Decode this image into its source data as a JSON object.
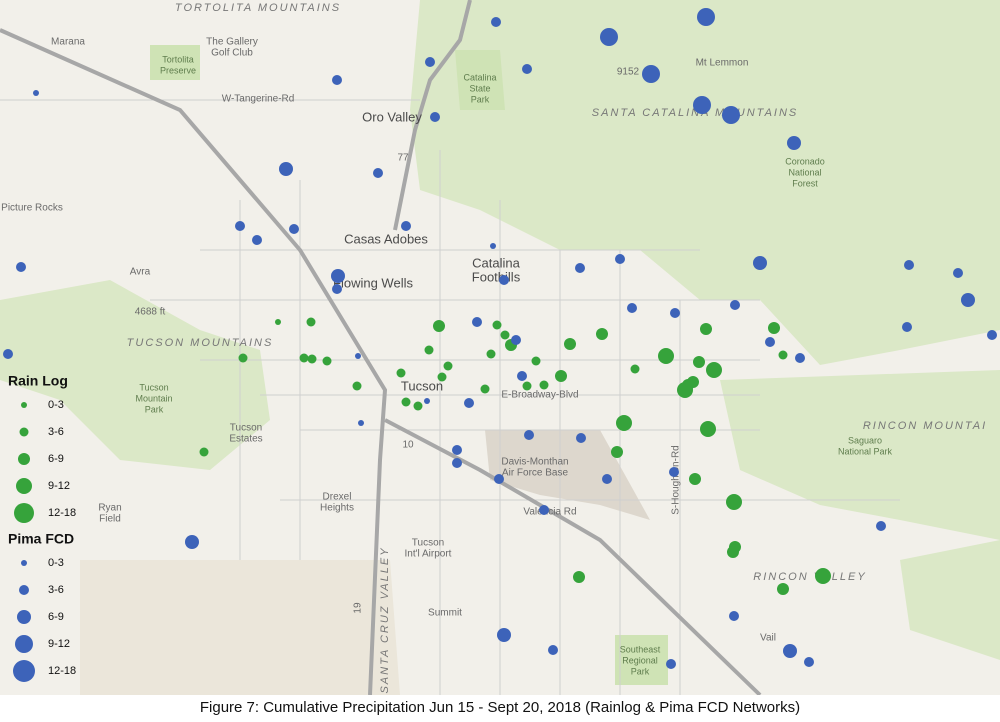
{
  "map": {
    "caption": "Figure 7: Cumulative Precipitation Jun 15 - Sept 20, 2018 (Rainlog & Pima FCD Networks)",
    "legend": [
      {
        "title": "Rain Log",
        "classes": [
          "0-3",
          "3-6",
          "6-9",
          "9-12",
          "12-18"
        ]
      },
      {
        "title": "Pima FCD",
        "classes": [
          "0-3",
          "3-6",
          "6-9",
          "9-12",
          "12-18"
        ]
      }
    ],
    "places": [
      [
        "TORTOLITA MOUNTAINS"
      ],
      [
        "Marana"
      ],
      [
        "The Gallery",
        "Golf Club"
      ],
      [
        "Tortolita",
        "Preserve"
      ],
      [
        "W-Tangerine-Rd"
      ],
      [
        "Oro Valley"
      ],
      [
        "Catalina",
        "State",
        "Park"
      ],
      [
        "9152"
      ],
      [
        "Mt Lemmon"
      ],
      [
        "SANTA CATALINA MOUNTAINS"
      ],
      [
        "Coronado",
        "National",
        "Forest"
      ],
      [
        "Picture Rocks"
      ],
      [
        "Casas Adobes"
      ],
      [
        "Catalina",
        "Foothills"
      ],
      [
        "Flowing Wells"
      ],
      [
        "Avra"
      ],
      [
        "4688 ft"
      ],
      [
        "TUCSON MOUNTAINS"
      ],
      [
        "Tucson"
      ],
      [
        "E-Broadway-Blvd"
      ],
      [
        "Tucson",
        "Mountain",
        "Park"
      ],
      [
        "Tucson",
        "Estates"
      ],
      [
        "RINCON MOUNTAI"
      ],
      [
        "Saguaro",
        "National Park"
      ],
      [
        "Davis-Monthan",
        "Air Force Base"
      ],
      [
        "S-Houghton-Rd"
      ],
      [
        "Valencia Rd"
      ],
      [
        "Drexel",
        "Heights"
      ],
      [
        "Ryan",
        "Field"
      ],
      [
        "Tucson",
        "Int'l Airport"
      ],
      [
        "SANTA CRUZ VALLEY"
      ],
      [
        "Summit"
      ],
      [
        "RINCON VALLEY"
      ],
      [
        "Vail"
      ],
      [
        "Southeast",
        "Regional",
        "Park"
      ],
      [
        "10"
      ],
      [
        "19"
      ],
      [
        "77"
      ]
    ]
  }
}
